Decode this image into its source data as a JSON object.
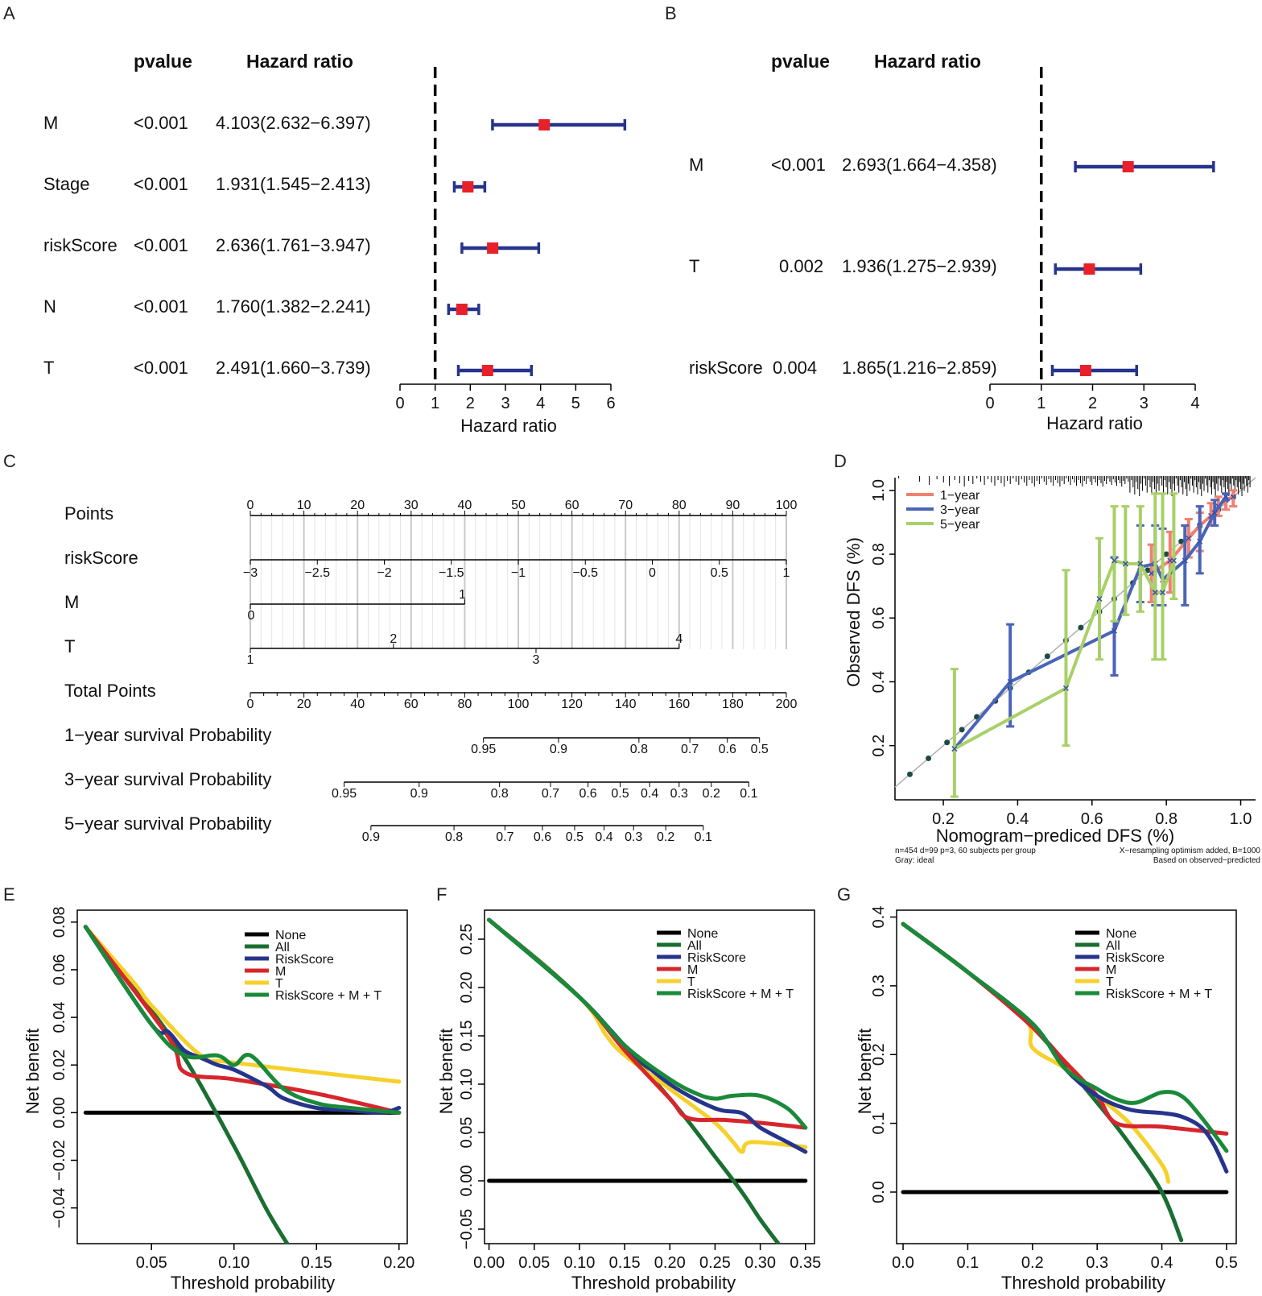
{
  "colors": {
    "forest_bar": "#27348b",
    "forest_point": "#e8202a",
    "cal_1yr": "#f08070",
    "cal_3yr": "#4a64b8",
    "cal_5yr": "#a8d068",
    "cal_dot": "#1d4a45",
    "dca_none": "#000000",
    "dca_all": "#1a6e32",
    "dca_riskscore": "#27348b",
    "dca_m": "#d6262c",
    "dca_t": "#f6d02b",
    "dca_combo": "#1a8a3a"
  },
  "chart_data": [
    {
      "panel": "A",
      "type": "forest",
      "col_headers": [
        "pvalue",
        "Hazard ratio"
      ],
      "rows": [
        {
          "label": "M",
          "pvalue": "<0.001",
          "hr_text": "4.103(2.632−6.397)",
          "hr": 4.103,
          "lo": 2.632,
          "hi": 6.397
        },
        {
          "label": "Stage",
          "pvalue": "<0.001",
          "hr_text": "1.931(1.545−2.413)",
          "hr": 1.931,
          "lo": 1.545,
          "hi": 2.413
        },
        {
          "label": "riskScore",
          "pvalue": "<0.001",
          "hr_text": "2.636(1.761−3.947)",
          "hr": 2.636,
          "lo": 1.761,
          "hi": 3.947
        },
        {
          "label": "N",
          "pvalue": "<0.001",
          "hr_text": "1.760(1.382−2.241)",
          "hr": 1.76,
          "lo": 1.382,
          "hi": 2.241
        },
        {
          "label": "T",
          "pvalue": "<0.001",
          "hr_text": "2.491(1.660−3.739)",
          "hr": 2.491,
          "lo": 1.66,
          "hi": 3.739
        }
      ],
      "xticks": [
        0,
        1,
        2,
        3,
        4,
        5,
        6
      ],
      "xlim": [
        0,
        6
      ],
      "ref_line": 1,
      "xlabel": "Hazard ratio"
    },
    {
      "panel": "B",
      "type": "forest",
      "col_headers": [
        "pvalue",
        "Hazard ratio"
      ],
      "rows": [
        {
          "label": "M",
          "pvalue": "<0.001",
          "hr_text": "2.693(1.664−4.358)",
          "hr": 2.693,
          "lo": 1.664,
          "hi": 4.358
        },
        {
          "label": "T",
          "pvalue": "0.002",
          "hr_text": "1.936(1.275−2.939)",
          "hr": 1.936,
          "lo": 1.275,
          "hi": 2.939
        },
        {
          "label": "riskScore",
          "pvalue": "0.004",
          "hr_text": "1.865(1.216−2.859)",
          "hr": 1.865,
          "lo": 1.216,
          "hi": 2.859
        }
      ],
      "xticks": [
        0,
        1,
        2,
        3,
        4
      ],
      "xlim": [
        0,
        4
      ],
      "ref_line": 1,
      "xlabel": "Hazard ratio"
    },
    {
      "panel": "C",
      "type": "nomogram",
      "points_ticks": [
        0,
        10,
        20,
        30,
        40,
        50,
        60,
        70,
        80,
        90,
        100
      ],
      "rows": [
        {
          "label": "Points"
        },
        {
          "label": "riskScore",
          "ticks": [
            "−3",
            "−2.5",
            "−2",
            "−1.5",
            "−1",
            "−0.5",
            "0",
            "0.5",
            "1"
          ],
          "points": [
            0,
            12.5,
            25,
            37.5,
            50,
            62.5,
            75,
            87.5,
            100
          ]
        },
        {
          "label": "M",
          "ticks": [
            "0",
            "1"
          ],
          "points": [
            0,
            40
          ]
        },
        {
          "label": "T",
          "ticks": [
            "1",
            "2",
            "3",
            "4"
          ],
          "points": [
            0,
            26.7,
            53.3,
            80
          ]
        },
        {
          "label": "Total Points",
          "ticks": [
            "0",
            "20",
            "40",
            "60",
            "80",
            "100",
            "120",
            "140",
            "160",
            "180",
            "200"
          ]
        },
        {
          "label": "1−year survival Probability",
          "ticks": [
            "0.95",
            "0.9",
            "0.8",
            "0.7",
            "0.6",
            "0.5"
          ],
          "total_points": [
            87,
            115,
            145,
            164,
            178,
            190
          ]
        },
        {
          "label": "3−year survival Probability",
          "ticks": [
            "0.95",
            "0.9",
            "0.8",
            "0.7",
            "0.6",
            "0.5",
            "0.4",
            "0.3",
            "0.2",
            "0.1"
          ],
          "total_points": [
            35,
            63,
            93,
            112,
            126,
            138,
            149,
            160,
            172,
            186
          ]
        },
        {
          "label": "5−year survival Probability",
          "ticks": [
            "0.9",
            "0.8",
            "0.7",
            "0.6",
            "0.5",
            "0.4",
            "0.3",
            "0.2",
            "0.1"
          ],
          "total_points": [
            45,
            76,
            95,
            109,
            121,
            132,
            143,
            155,
            169
          ]
        }
      ]
    },
    {
      "panel": "D",
      "type": "calibration",
      "xlabel": "Nomogram−prediced DFS (%)",
      "ylabel": "Observed DFS (%)",
      "xlim": [
        0.07,
        1.04
      ],
      "ylim": [
        0.03,
        1.04
      ],
      "xticks": [
        "0.2",
        "0.4",
        "0.6",
        "0.8",
        "1.0"
      ],
      "yticks": [
        "0.2",
        "0.4",
        "0.6",
        "0.8",
        "1.0"
      ],
      "legend": [
        "1−year",
        "3−year",
        "5−year"
      ],
      "ideal_points": [
        0.11,
        0.16,
        0.21,
        0.25,
        0.29,
        0.34,
        0.38,
        0.43,
        0.48,
        0.53,
        0.57,
        0.62,
        0.66,
        0.71,
        0.75,
        0.8,
        0.84,
        0.89,
        0.94,
        0.98
      ],
      "series": [
        {
          "name": "1−year",
          "x": [
            0.76,
            0.81,
            0.86,
            0.89,
            0.92,
            0.94,
            0.96,
            0.98
          ],
          "y": [
            0.74,
            0.78,
            0.85,
            0.89,
            0.92,
            0.95,
            0.97,
            0.98
          ],
          "lo": [
            0.65,
            0.68,
            0.79,
            0.81,
            0.89,
            0.92,
            0.94,
            0.95
          ],
          "hi": [
            0.83,
            0.87,
            0.91,
            0.93,
            0.96,
            0.98,
            0.99,
            1.0
          ]
        },
        {
          "name": "3−year",
          "x": [
            0.23,
            0.38,
            0.66,
            0.73,
            0.77,
            0.79,
            0.85,
            0.89,
            0.93,
            0.96
          ],
          "y": [
            0.19,
            0.4,
            0.56,
            0.76,
            0.77,
            0.72,
            0.78,
            0.84,
            0.93,
            0.98
          ],
          "lo": [
            0.19,
            0.26,
            0.42,
            0.65,
            0.64,
            0.64,
            0.64,
            0.74,
            0.89,
            0.97
          ],
          "hi": [
            0.19,
            0.58,
            0.79,
            0.89,
            0.89,
            0.88,
            0.89,
            0.95,
            0.97,
            0.99
          ]
        },
        {
          "name": "5−year",
          "x": [
            0.23,
            0.53,
            0.62,
            0.66,
            0.69,
            0.73,
            0.77,
            0.79,
            0.82
          ],
          "y": [
            0.19,
            0.38,
            0.66,
            0.78,
            0.77,
            0.77,
            0.68,
            0.68,
            0.78
          ],
          "lo": [
            0.04,
            0.2,
            0.47,
            0.59,
            0.61,
            0.62,
            0.47,
            0.47,
            0.66
          ],
          "hi": [
            0.44,
            0.75,
            0.85,
            0.95,
            0.95,
            0.95,
            0.99,
            0.99,
            0.99
          ]
        }
      ],
      "footnote_left": "n=454 d=99 p=3, 60 subjects per group",
      "footnote_left2": "Gray: ideal",
      "footnote_right": "X−resampling optimism added, B=1000",
      "footnote_right2": "Based on observed−predicted"
    },
    {
      "panel": "E",
      "type": "line",
      "xlabel": "Threshold probability",
      "ylabel": "Net benefit",
      "xlim": [
        0.005,
        0.205
      ],
      "ylim": [
        -0.055,
        0.085
      ],
      "xticks": [
        "0.05",
        "0.10",
        "0.15",
        "0.20"
      ],
      "yticks": [
        "−0.04",
        "−0.02",
        "0.00",
        "0.02",
        "0.04",
        "0.06",
        "0.08"
      ],
      "legend": [
        "None",
        "All",
        "RiskScore",
        "M",
        "T",
        "RiskScore + M + T"
      ],
      "series": [
        {
          "name": "None",
          "x": [
            0.01,
            0.2
          ],
          "y": [
            0.0,
            0.0
          ]
        },
        {
          "name": "All",
          "x": [
            0.01,
            0.04,
            0.07,
            0.1,
            0.12,
            0.135
          ],
          "y": [
            0.078,
            0.052,
            0.023,
            -0.014,
            -0.041,
            -0.058
          ]
        },
        {
          "name": "RiskScore",
          "x": [
            0.01,
            0.05,
            0.06,
            0.07,
            0.08,
            0.09,
            0.1,
            0.12,
            0.13,
            0.15,
            0.17,
            0.19,
            0.2
          ],
          "y": [
            0.078,
            0.037,
            0.034,
            0.026,
            0.023,
            0.02,
            0.018,
            0.011,
            0.006,
            0.002,
            0.001,
            0.0,
            0.002
          ]
        },
        {
          "name": "M",
          "x": [
            0.01,
            0.06,
            0.07,
            0.1,
            0.15,
            0.2
          ],
          "y": [
            0.078,
            0.032,
            0.017,
            0.014,
            0.008,
            0.0
          ]
        },
        {
          "name": "T",
          "x": [
            0.01,
            0.04,
            0.05,
            0.08,
            0.1,
            0.2
          ],
          "y": [
            0.078,
            0.054,
            0.045,
            0.024,
            0.021,
            0.013
          ]
        },
        {
          "name": "RiskScore + M + T",
          "x": [
            0.01,
            0.05,
            0.07,
            0.09,
            0.1,
            0.11,
            0.13,
            0.15,
            0.17,
            0.2
          ],
          "y": [
            0.078,
            0.037,
            0.024,
            0.024,
            0.02,
            0.024,
            0.01,
            0.004,
            0.002,
            0.0
          ]
        }
      ]
    },
    {
      "panel": "F",
      "type": "line",
      "xlabel": "Threshold probability",
      "ylabel": "Net benefit",
      "xlim": [
        -0.005,
        0.36
      ],
      "ylim": [
        -0.065,
        0.28
      ],
      "xticks": [
        "0.00",
        "0.05",
        "0.10",
        "0.15",
        "0.20",
        "0.25",
        "0.30",
        "0.35"
      ],
      "yticks": [
        "−0.05",
        "0.00",
        "0.05",
        "0.10",
        "0.15",
        "0.20",
        "0.25"
      ],
      "legend": [
        "None",
        "All",
        "RiskScore",
        "M",
        "T",
        "RiskScore + M + T"
      ],
      "series": [
        {
          "name": "None",
          "x": [
            0.0,
            0.35
          ],
          "y": [
            0.0,
            0.0
          ]
        },
        {
          "name": "All",
          "x": [
            0.0,
            0.1,
            0.2,
            0.25,
            0.28,
            0.3,
            0.32
          ],
          "y": [
            0.27,
            0.19,
            0.085,
            0.025,
            -0.012,
            -0.04,
            -0.065
          ]
        },
        {
          "name": "RiskScore",
          "x": [
            0.0,
            0.1,
            0.15,
            0.2,
            0.25,
            0.28,
            0.3,
            0.33,
            0.35
          ],
          "y": [
            0.27,
            0.19,
            0.14,
            0.1,
            0.075,
            0.07,
            0.055,
            0.04,
            0.03
          ]
        },
        {
          "name": "M",
          "x": [
            0.0,
            0.1,
            0.15,
            0.2,
            0.22,
            0.26,
            0.3,
            0.35
          ],
          "y": [
            0.27,
            0.19,
            0.135,
            0.085,
            0.065,
            0.063,
            0.06,
            0.055
          ]
        },
        {
          "name": "T",
          "x": [
            0.0,
            0.1,
            0.13,
            0.15,
            0.2,
            0.25,
            0.27,
            0.28,
            0.29,
            0.35
          ],
          "y": [
            0.27,
            0.19,
            0.15,
            0.13,
            0.095,
            0.06,
            0.04,
            0.03,
            0.04,
            0.035
          ]
        },
        {
          "name": "RiskScore + M + T",
          "x": [
            0.0,
            0.1,
            0.15,
            0.2,
            0.23,
            0.25,
            0.27,
            0.3,
            0.33,
            0.35
          ],
          "y": [
            0.27,
            0.19,
            0.14,
            0.105,
            0.09,
            0.085,
            0.088,
            0.088,
            0.075,
            0.055
          ]
        }
      ]
    },
    {
      "panel": "G",
      "type": "line",
      "xlabel": "Threshold probability",
      "ylabel": "Net benefit",
      "xlim": [
        -0.01,
        0.515
      ],
      "ylim": [
        -0.075,
        0.41
      ],
      "xticks": [
        "0.0",
        "0.1",
        "0.2",
        "0.3",
        "0.4",
        "0.5"
      ],
      "yticks": [
        "0.0",
        "0.1",
        "0.2",
        "0.3",
        "0.4"
      ],
      "legend": [
        "None",
        "All",
        "RiskScore",
        "M",
        "T",
        "RiskScore + M + T"
      ],
      "series": [
        {
          "name": "None",
          "x": [
            0.0,
            0.5
          ],
          "y": [
            0.0,
            0.0
          ]
        },
        {
          "name": "All",
          "x": [
            0.0,
            0.1,
            0.2,
            0.3,
            0.35,
            0.4,
            0.43
          ],
          "y": [
            0.39,
            0.32,
            0.24,
            0.13,
            0.07,
            0.0,
            -0.07
          ]
        },
        {
          "name": "RiskScore",
          "x": [
            0.0,
            0.1,
            0.2,
            0.25,
            0.3,
            0.35,
            0.4,
            0.43,
            0.46,
            0.48,
            0.5
          ],
          "y": [
            0.39,
            0.32,
            0.245,
            0.18,
            0.14,
            0.12,
            0.115,
            0.11,
            0.095,
            0.07,
            0.03
          ]
        },
        {
          "name": "M",
          "x": [
            0.0,
            0.1,
            0.2,
            0.25,
            0.3,
            0.33,
            0.4,
            0.5
          ],
          "y": [
            0.39,
            0.32,
            0.24,
            0.19,
            0.14,
            0.1,
            0.095,
            0.085
          ]
        },
        {
          "name": "T",
          "x": [
            0.0,
            0.1,
            0.19,
            0.2,
            0.25,
            0.3,
            0.35,
            0.4,
            0.41
          ],
          "y": [
            0.39,
            0.32,
            0.25,
            0.21,
            0.18,
            0.14,
            0.1,
            0.04,
            0.015
          ]
        },
        {
          "name": "RiskScore + M + T",
          "x": [
            0.0,
            0.1,
            0.2,
            0.25,
            0.3,
            0.33,
            0.36,
            0.4,
            0.43,
            0.46,
            0.5
          ],
          "y": [
            0.39,
            0.32,
            0.245,
            0.18,
            0.15,
            0.135,
            0.13,
            0.145,
            0.14,
            0.11,
            0.06
          ]
        }
      ]
    }
  ],
  "panel_labels": [
    "A",
    "B",
    "C",
    "D",
    "E",
    "F",
    "G"
  ]
}
